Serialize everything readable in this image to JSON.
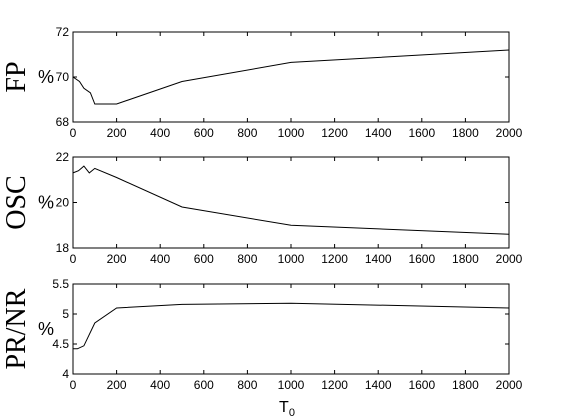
{
  "chart_data": [
    {
      "type": "line",
      "ylabel": "FP",
      "unit": "%",
      "xlim": [
        0,
        2000
      ],
      "ylim": [
        68,
        72
      ],
      "xticks": [
        "0",
        "200",
        "400",
        "600",
        "800",
        "1000",
        "1200",
        "1400",
        "1600",
        "1800",
        "2000"
      ],
      "yticks": [
        "68",
        "70",
        "72"
      ],
      "x": [
        0,
        30,
        50,
        80,
        100,
        150,
        200,
        500,
        1000,
        2000
      ],
      "y": [
        70.0,
        69.8,
        69.5,
        69.3,
        68.8,
        68.8,
        68.8,
        69.8,
        70.65,
        71.2
      ]
    },
    {
      "type": "line",
      "ylabel": "OSC",
      "unit": "%",
      "xlim": [
        0,
        2000
      ],
      "ylim": [
        18,
        22
      ],
      "xticks": [
        "0",
        "200",
        "400",
        "600",
        "800",
        "1000",
        "1200",
        "1400",
        "1600",
        "1800",
        "2000"
      ],
      "yticks": [
        "18",
        "20",
        "22"
      ],
      "x": [
        0,
        25,
        50,
        75,
        100,
        200,
        500,
        1000,
        2000
      ],
      "y": [
        21.3,
        21.4,
        21.6,
        21.3,
        21.5,
        21.1,
        19.8,
        19.0,
        18.6
      ]
    },
    {
      "type": "line",
      "ylabel": "PR/NR",
      "unit": "%",
      "xlim": [
        0,
        2000
      ],
      "ylim": [
        4,
        5.5
      ],
      "xticks": [
        "0",
        "200",
        "400",
        "600",
        "800",
        "1000",
        "1200",
        "1400",
        "1600",
        "1800",
        "2000"
      ],
      "yticks": [
        "4",
        "4.5",
        "5",
        "5.5"
      ],
      "x": [
        0,
        20,
        50,
        100,
        200,
        500,
        1000,
        2000
      ],
      "y": [
        4.42,
        4.42,
        4.47,
        4.85,
        5.1,
        5.16,
        5.18,
        5.1
      ]
    }
  ],
  "xlabel": "T",
  "xlabel_sub": "0"
}
